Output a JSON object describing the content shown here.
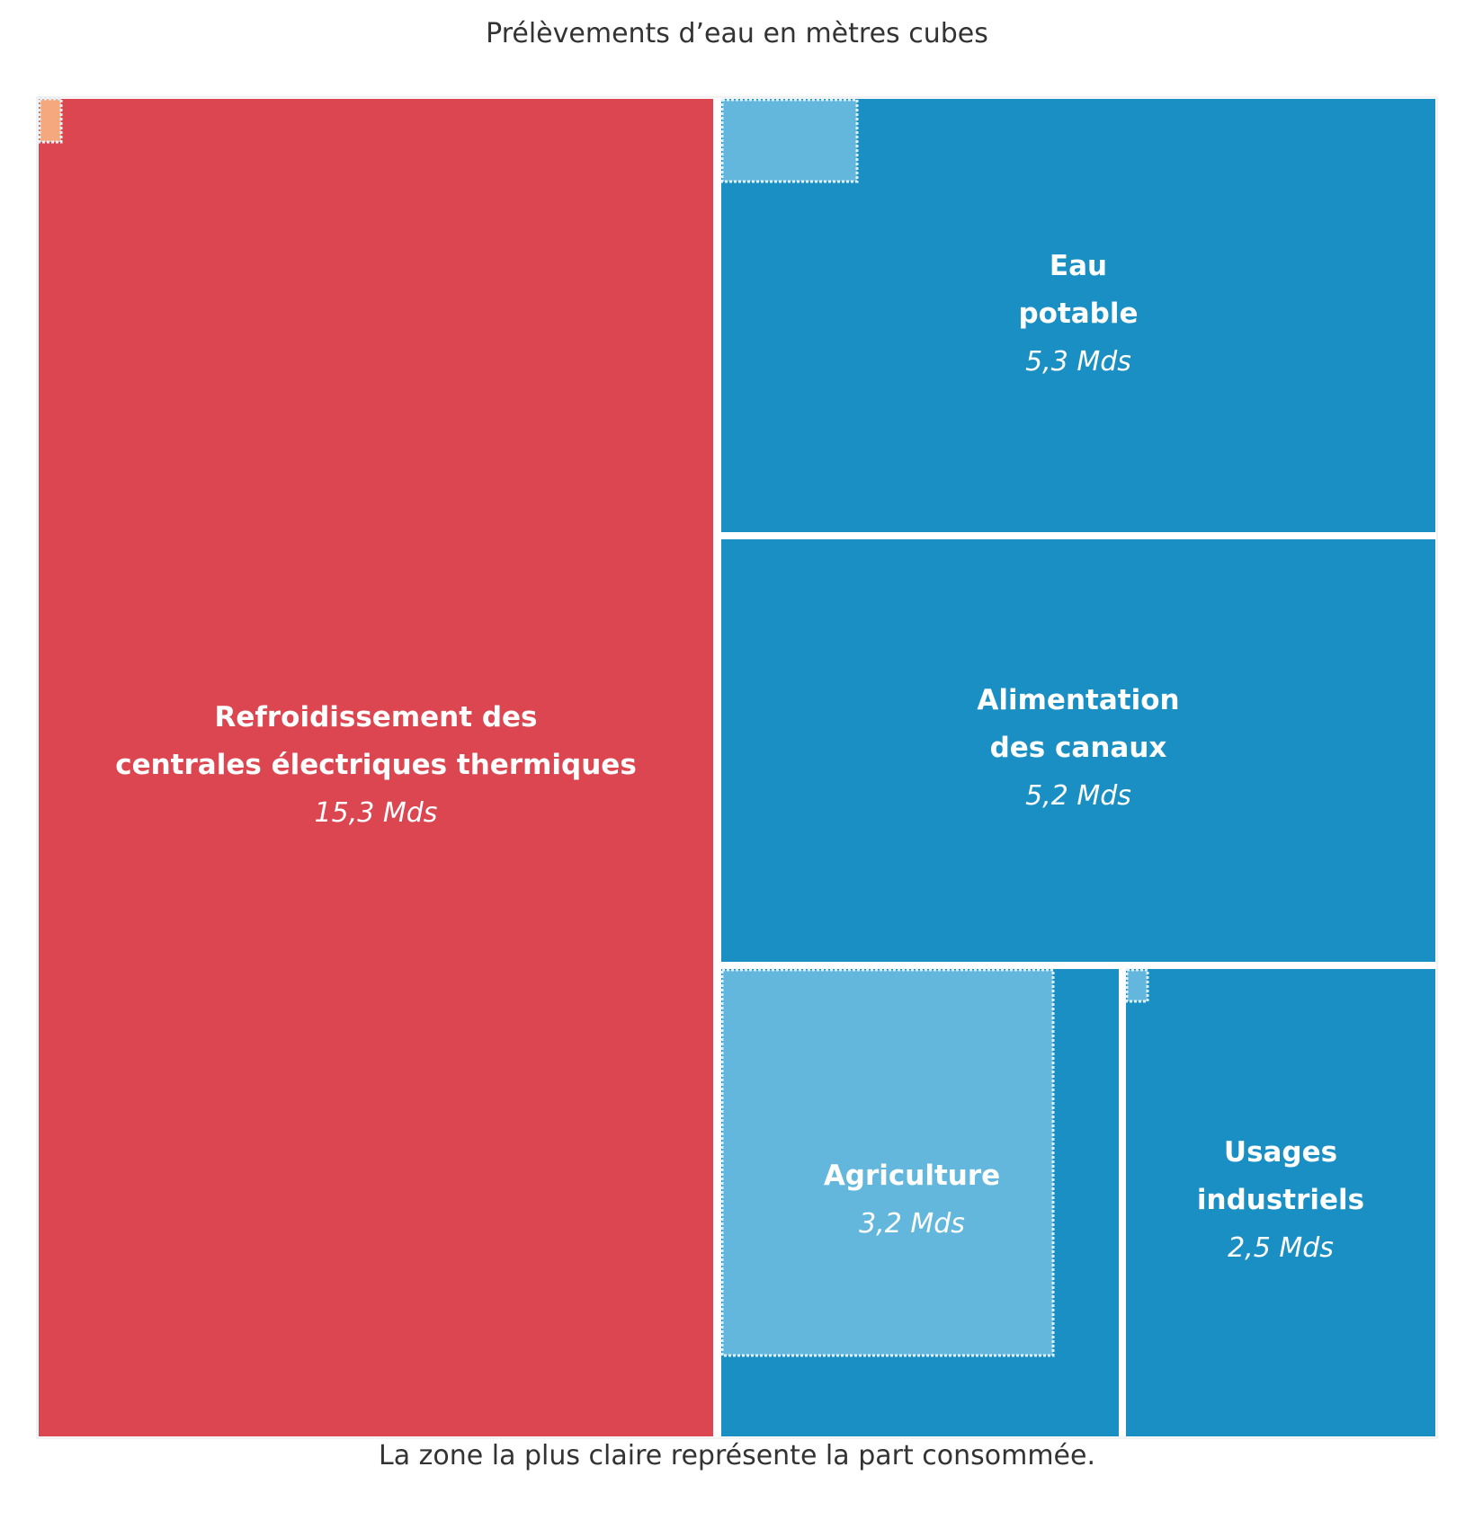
{
  "chart_data": {
    "type": "treemap",
    "title": "Prélèvements d’eau en mètres cubes",
    "note": "La zone la plus claire représente la part consommée.",
    "unit": "Mds",
    "items": [
      {
        "name": "Refroidissement des centrales électriques thermiques",
        "label_lines": [
          "Refroidissement des",
          "centrales électriques thermiques"
        ],
        "value_label": "15,3 Mds",
        "value": 15.3,
        "color": "#db4651",
        "consumed_color": "#f5a77e"
      },
      {
        "name": "Eau potable",
        "label_lines": [
          "Eau",
          "potable"
        ],
        "value_label": "5,3 Mds",
        "value": 5.3,
        "color": "#1a8fc4",
        "consumed_color": "#63b7dc"
      },
      {
        "name": "Alimentation des canaux",
        "label_lines": [
          "Alimentation",
          "des canaux"
        ],
        "value_label": "5,2 Mds",
        "value": 5.2,
        "color": "#1a8fc4",
        "consumed_color": null
      },
      {
        "name": "Agriculture",
        "label_lines": [
          "Agriculture"
        ],
        "value_label": "3,2 Mds",
        "value": 3.2,
        "color": "#1a8fc4",
        "consumed_color": "#63b7dc"
      },
      {
        "name": "Usages industriels",
        "label_lines": [
          "Usages",
          "industriels"
        ],
        "value_label": "2,5 Mds",
        "value": 2.5,
        "color": "#1a8fc4",
        "consumed_color": "#63b7dc"
      }
    ]
  }
}
